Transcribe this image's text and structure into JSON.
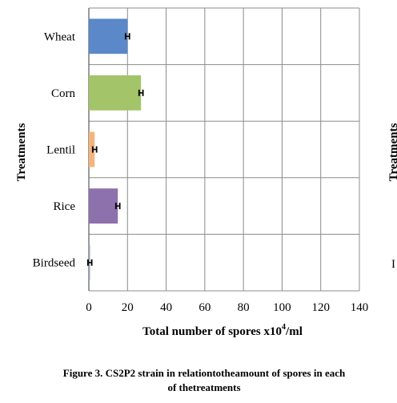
{
  "chart_data": {
    "type": "bar",
    "orientation": "horizontal",
    "categories": [
      "Wheat",
      "Corn",
      "Lentil",
      "Rice",
      "Birdseed"
    ],
    "values": [
      20,
      27,
      3,
      15,
      0.5
    ],
    "error": [
      1,
      1,
      1,
      1,
      1
    ],
    "colors": [
      "#5a88c8",
      "#a3c468",
      "#f3b47c",
      "#8d71ad",
      "#9aa5b8"
    ],
    "xlim": [
      0,
      140
    ],
    "xticks": [
      0,
      20,
      40,
      60,
      80,
      100,
      120,
      140
    ],
    "xlabel_main": "Total number of spores x10",
    "xlabel_sup": "4",
    "xlabel_tail": "/ml",
    "ylabel": "Treatments",
    "grid": true
  },
  "caption": {
    "line1": "Figure 3. CS2P2 strain in relationtotheamount of spores in each",
    "line2": "of thetreatments"
  },
  "clipped_panel": {
    "ylabel_fragment": "Treatments",
    "letter_fragment": "I"
  }
}
